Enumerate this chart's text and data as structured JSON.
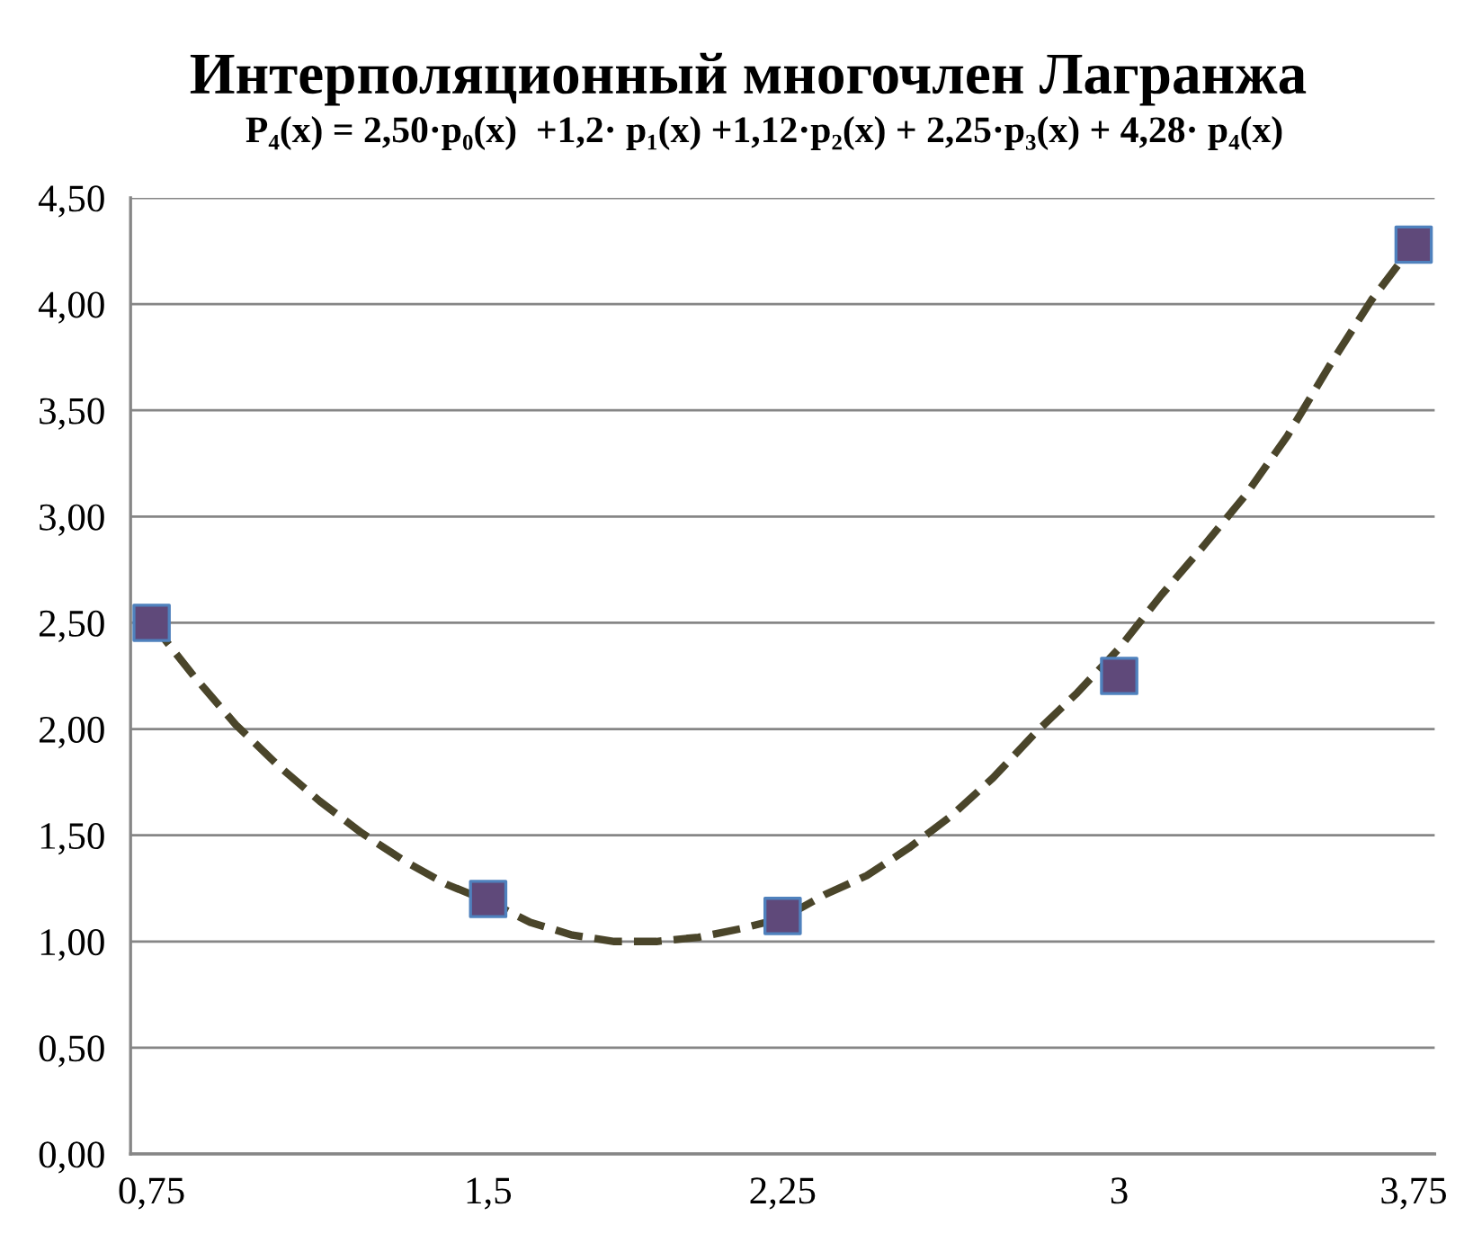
{
  "chart_data": {
    "type": "line",
    "title": "Интерполяционный многочлен Лагранжа",
    "subtitle": "P₄(x) = 2,50·p₀(x)  +1,2· p₁(x) +1,12·p₂(x) + 2,25·p₃(x) + 4,28· p₄(x)",
    "categories": [
      "0,75",
      null,
      null,
      null,
      null,
      null,
      null,
      null,
      "1,5",
      null,
      null,
      null,
      null,
      null,
      null,
      "2,25",
      null,
      null,
      null,
      null,
      null,
      null,
      null,
      "3",
      null,
      null,
      null,
      null,
      null,
      null,
      "3,75"
    ],
    "series": [
      {
        "color": "#4a452a",
        "line_style": "dashed",
        "marker": "none",
        "values": [
          2.5,
          2.25,
          2.02,
          1.83,
          1.66,
          1.51,
          1.38,
          1.27,
          1.19,
          1.09,
          1.03,
          1.0,
          1.0,
          1.02,
          1.06,
          1.11,
          1.22,
          1.31,
          1.44,
          1.59,
          1.77,
          1.98,
          2.17,
          2.38,
          2.63,
          2.86,
          3.1,
          3.38,
          3.71,
          4.02,
          4.28
        ]
      },
      {
        "type": "scatter",
        "color": "#5f497a",
        "marker": "square",
        "values": [
          2.5,
          null,
          null,
          null,
          null,
          null,
          null,
          null,
          1.2,
          null,
          null,
          null,
          null,
          null,
          null,
          1.12,
          null,
          null,
          null,
          null,
          null,
          null,
          null,
          2.25,
          null,
          null,
          null,
          null,
          null,
          null,
          4.28
        ]
      }
    ],
    "ylim": [
      0,
      4.5
    ],
    "yticks": [
      {
        "value": 0,
        "label": "0,00"
      },
      {
        "value": 0.5,
        "label": "0,50"
      },
      {
        "value": 1,
        "label": "1,00"
      },
      {
        "value": 1.5,
        "label": "1,50"
      },
      {
        "value": 2,
        "label": "2,00"
      },
      {
        "value": 2.5,
        "label": "2,50"
      },
      {
        "value": 3,
        "label": "3,00"
      },
      {
        "value": 3.5,
        "label": "3,50"
      },
      {
        "value": 4,
        "label": "4,00"
      },
      {
        "value": 4.5,
        "label": "4,50"
      }
    ],
    "grid": "y"
  }
}
